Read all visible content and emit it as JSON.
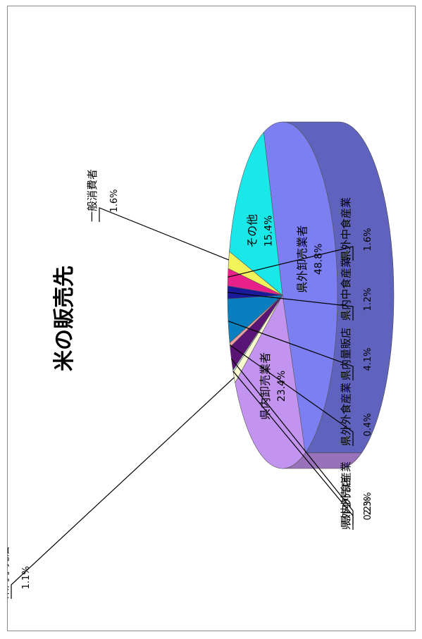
{
  "chart_data": {
    "type": "pie",
    "title": "米の販売先",
    "slices": [
      {
        "label": "県外卸売業者",
        "value": 48.8,
        "value_text": "48.8%",
        "color": "#7b7ff2"
      },
      {
        "label": "県内卸売業者",
        "value": 23.4,
        "value_text": "23.4%",
        "color": "#c393f0"
      },
      {
        "label": "県内小売店",
        "value": 1.1,
        "value_text": "1.1%",
        "color": "#fafad0"
      },
      {
        "label": "県外小売店",
        "value": 0.2,
        "value_text": "0.2%",
        "color": "#d0f5f5"
      },
      {
        "label": "県内外食産業",
        "value": 2.3,
        "value_text": "2.3%",
        "color": "#5a1475"
      },
      {
        "label": "県外外食産業",
        "value": 0.4,
        "value_text": "0.4%",
        "color": "#f0a0a0"
      },
      {
        "label": "県内量販店",
        "value": 4.1,
        "value_text": "4.1%",
        "color": "#0a7fbf"
      },
      {
        "label": "県内中食産業",
        "value": 1.2,
        "value_text": "1.2%",
        "color": "#1a1a9a"
      },
      {
        "label": "県外中食産業",
        "value": 1.6,
        "value_text": "1.6%",
        "color": "#e8208a"
      },
      {
        "label": "一般消費者",
        "value": 1.6,
        "value_text": "1.6%",
        "color": "#f2f25a"
      },
      {
        "label": "その他",
        "value": 15.4,
        "value_text": "15.4%",
        "color": "#1ae8e8"
      }
    ]
  }
}
